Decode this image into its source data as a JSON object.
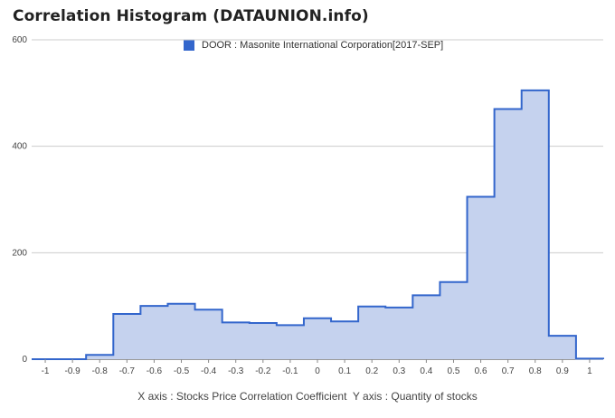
{
  "header": {
    "title": "Correlation Histogram (DATAUNION.info)"
  },
  "caption": {
    "x_axis": "X axis : Stocks Price Correlation Coefficient",
    "y_axis": "Y axis : Quantity of stocks"
  },
  "colors": {
    "line": "#3366cc",
    "fill": "#c5d2ee",
    "grid": "#cccccc"
  },
  "chart_data": {
    "type": "area",
    "series": [
      {
        "name": "DOOR : Masonite International Corporation[2017-SEP]",
        "bins": [
          {
            "x": -1.0,
            "y": 0
          },
          {
            "x": -0.9,
            "y": 0
          },
          {
            "x": -0.8,
            "y": 8
          },
          {
            "x": -0.7,
            "y": 85
          },
          {
            "x": -0.6,
            "y": 100
          },
          {
            "x": -0.5,
            "y": 104
          },
          {
            "x": -0.4,
            "y": 93
          },
          {
            "x": -0.3,
            "y": 69
          },
          {
            "x": -0.2,
            "y": 68
          },
          {
            "x": -0.1,
            "y": 64
          },
          {
            "x": 0.0,
            "y": 77
          },
          {
            "x": 0.1,
            "y": 71
          },
          {
            "x": 0.2,
            "y": 99
          },
          {
            "x": 0.3,
            "y": 97
          },
          {
            "x": 0.4,
            "y": 120
          },
          {
            "x": 0.5,
            "y": 145
          },
          {
            "x": 0.6,
            "y": 305
          },
          {
            "x": 0.7,
            "y": 470
          },
          {
            "x": 0.8,
            "y": 505
          },
          {
            "x": 0.9,
            "y": 44
          },
          {
            "x": 1.0,
            "y": 1
          }
        ]
      }
    ],
    "x_ticks": [
      "-1",
      "-0.9",
      "-0.8",
      "-0.7",
      "-0.6",
      "-0.5",
      "-0.4",
      "-0.3",
      "-0.2",
      "-0.1",
      "0",
      "0.1",
      "0.2",
      "0.3",
      "0.4",
      "0.5",
      "0.6",
      "0.7",
      "0.8",
      "0.9",
      "1"
    ],
    "y_ticks": [
      "0",
      "200",
      "400",
      "600"
    ],
    "xlim": [
      -1.05,
      1.05
    ],
    "ylim": [
      0,
      600
    ],
    "grid": "horizontal",
    "legend_position": "top"
  }
}
